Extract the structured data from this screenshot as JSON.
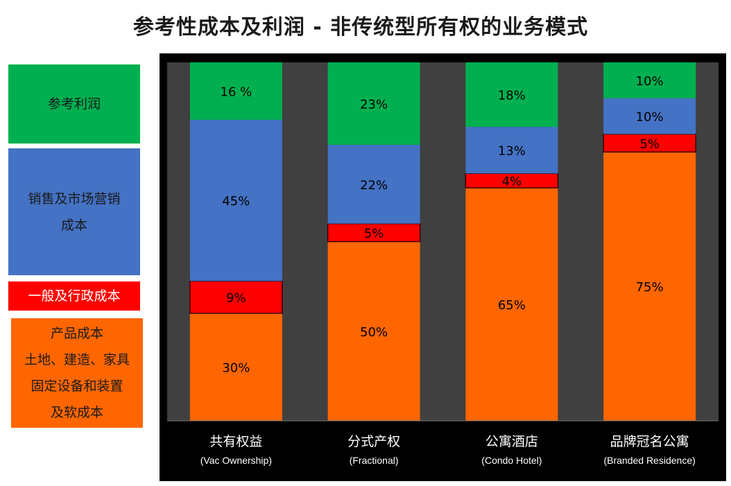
{
  "chart_data": {
    "type": "bar",
    "stacked": true,
    "title": "参考性成本及利润 - 非传统型所有权的业务模式",
    "categories": [
      {
        "name": "共有权益",
        "sub": "(Vac Ownership)"
      },
      {
        "name": "分式产权",
        "sub": "(Fractional)"
      },
      {
        "name": "公寓酒店",
        "sub": "(Condo Hotel)"
      },
      {
        "name": "品牌冠名公寓",
        "sub": "(Branded Residence)"
      }
    ],
    "series": [
      {
        "key": "product",
        "color": "#ff6600",
        "values": [
          30,
          50,
          65,
          75
        ],
        "labels": [
          "30%",
          "50%",
          "65%",
          "75%"
        ]
      },
      {
        "key": "ga",
        "color": "#ff0000",
        "values": [
          9,
          5,
          4,
          5
        ],
        "labels": [
          "9%",
          "5%",
          "4%",
          "5%"
        ]
      },
      {
        "key": "sales",
        "color": "#4472c4",
        "values": [
          45,
          22,
          13,
          10
        ],
        "labels": [
          "45%",
          "22%",
          "13%",
          "10%"
        ]
      },
      {
        "key": "profit",
        "color": "#00b050",
        "values": [
          16,
          23,
          18,
          10
        ],
        "labels": [
          "16 %",
          "23%",
          "18%",
          "10%"
        ]
      }
    ],
    "ylim": [
      0,
      100
    ],
    "legend_placement": "left"
  },
  "legend": [
    {
      "key": "profit",
      "color": "#00b050",
      "lines": [
        "参考利润"
      ]
    },
    {
      "key": "sales",
      "color": "#4472c4",
      "lines": [
        "销售及市场营销",
        "成本"
      ]
    },
    {
      "key": "ga",
      "color": "#ff0000",
      "lines": [
        "一般及行政成本"
      ]
    },
    {
      "key": "product",
      "color": "#ff6600",
      "lines": [
        "产品成本",
        "土地、建造、家具",
        "固定设备和装置",
        "及软成本"
      ]
    }
  ],
  "colors": {
    "plot_background": "#000000",
    "column_background": "#404040",
    "label_text": "#000000",
    "axis_text": "#ffffff"
  }
}
